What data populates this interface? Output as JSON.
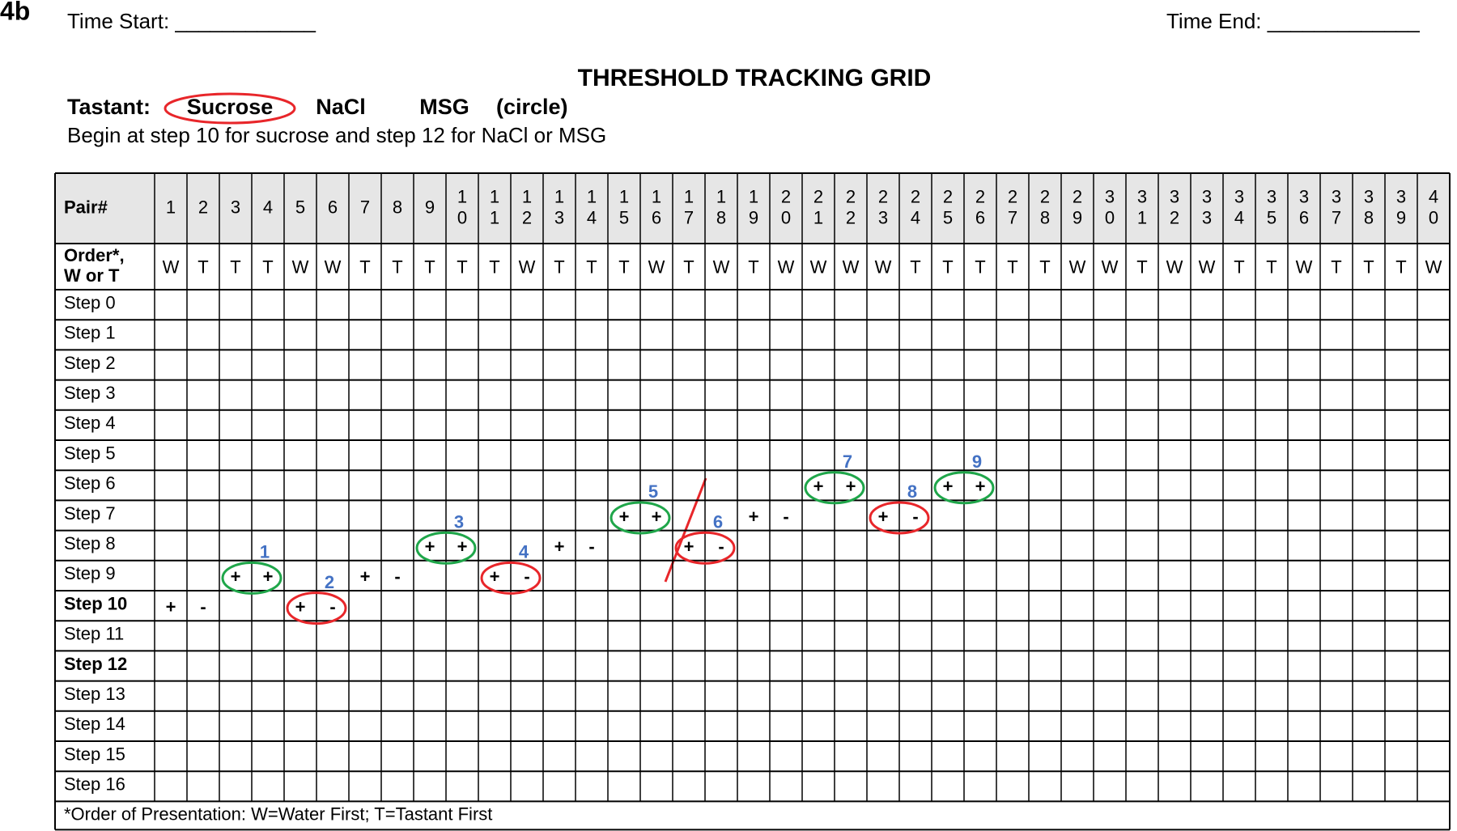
{
  "label": "4b",
  "time_start": "Time Start: ____________",
  "time_end": "Time End: _____________",
  "title": "THRESHOLD TRACKING GRID",
  "tastant": {
    "label": "Tastant:",
    "options": [
      "Sucrose",
      "NaCl",
      "MSG"
    ],
    "note": "(circle)",
    "selected": 0
  },
  "instruction": "Begin at step 10 for sucrose and step 12 for NaCl or MSG",
  "table": {
    "pair_label": "Pair#",
    "pairs": [
      "1",
      "2",
      "3",
      "4",
      "5",
      "6",
      "7",
      "8",
      "9",
      "10",
      "11",
      "12",
      "13",
      "14",
      "15",
      "16",
      "17",
      "18",
      "19",
      "20",
      "21",
      "22",
      "23",
      "24",
      "25",
      "26",
      "27",
      "28",
      "29",
      "30",
      "31",
      "32",
      "33",
      "34",
      "35",
      "36",
      "37",
      "38",
      "39",
      "40"
    ],
    "order_label": [
      "Order*,",
      "W or T"
    ],
    "orders": [
      "W",
      "T",
      "T",
      "T",
      "W",
      "W",
      "T",
      "T",
      "T",
      "T",
      "T",
      "W",
      "T",
      "T",
      "T",
      "W",
      "T",
      "W",
      "T",
      "W",
      "W",
      "W",
      "W",
      "T",
      "T",
      "T",
      "T",
      "T",
      "W",
      "W",
      "T",
      "W",
      "W",
      "T",
      "T",
      "W",
      "T",
      "T",
      "T",
      "W"
    ],
    "steps": [
      {
        "label": "Step 0"
      },
      {
        "label": "Step 1"
      },
      {
        "label": "Step 2"
      },
      {
        "label": "Step 3"
      },
      {
        "label": "Step 4"
      },
      {
        "label": "Step 5"
      },
      {
        "label": "Step 6"
      },
      {
        "label": "Step 7"
      },
      {
        "label": "Step 8"
      },
      {
        "label": "Step 9"
      },
      {
        "label": "Step 10",
        "bold": true
      },
      {
        "label": "Step 11"
      },
      {
        "label": "Step 12",
        "bold": true
      },
      {
        "label": "Step 13"
      },
      {
        "label": "Step 14"
      },
      {
        "label": "Step 15"
      },
      {
        "label": "Step 16"
      }
    ],
    "footnote": "*Order of Presentation: W=Water First; T=Tastant First",
    "responses": [
      {
        "pair": 1,
        "step": 10,
        "text": "+"
      },
      {
        "pair": 2,
        "step": 10,
        "text": "-"
      },
      {
        "pair": 3,
        "step": 9,
        "text": "+"
      },
      {
        "pair": 4,
        "step": 9,
        "text": "+"
      },
      {
        "pair": 5,
        "step": 10,
        "text": "+"
      },
      {
        "pair": 6,
        "step": 10,
        "text": "-"
      },
      {
        "pair": 7,
        "step": 9,
        "text": "+"
      },
      {
        "pair": 8,
        "step": 9,
        "text": "-"
      },
      {
        "pair": 9,
        "step": 8,
        "text": "+"
      },
      {
        "pair": 10,
        "step": 8,
        "text": "+"
      },
      {
        "pair": 11,
        "step": 9,
        "text": "+"
      },
      {
        "pair": 12,
        "step": 9,
        "text": "-"
      },
      {
        "pair": 13,
        "step": 8,
        "text": "+"
      },
      {
        "pair": 14,
        "step": 8,
        "text": "-"
      },
      {
        "pair": 15,
        "step": 7,
        "text": "+"
      },
      {
        "pair": 16,
        "step": 7,
        "text": "+"
      },
      {
        "pair": 17,
        "step": 8,
        "text": "+"
      },
      {
        "pair": 18,
        "step": 8,
        "text": "-"
      },
      {
        "pair": 19,
        "step": 7,
        "text": "+"
      },
      {
        "pair": 20,
        "step": 7,
        "text": "-"
      },
      {
        "pair": 21,
        "step": 6,
        "text": "+"
      },
      {
        "pair": 22,
        "step": 6,
        "text": "+"
      },
      {
        "pair": 23,
        "step": 7,
        "text": "+"
      },
      {
        "pair": 24,
        "step": 7,
        "text": "-"
      },
      {
        "pair": 25,
        "step": 6,
        "text": "+"
      },
      {
        "pair": 26,
        "step": 6,
        "text": "+"
      }
    ],
    "reversals": [
      {
        "label": "1",
        "pair": 3,
        "step": 9,
        "color": "#1fa64a"
      },
      {
        "label": "2",
        "pair": 5,
        "step": 10,
        "color": "#e8262a"
      },
      {
        "label": "3",
        "pair": 9,
        "step": 8,
        "color": "#1fa64a"
      },
      {
        "label": "4",
        "pair": 11,
        "step": 9,
        "color": "#e8262a"
      },
      {
        "label": "5",
        "pair": 15,
        "step": 7,
        "color": "#1fa64a"
      },
      {
        "label": "6",
        "pair": 17,
        "step": 8,
        "color": "#e8262a"
      },
      {
        "label": "7",
        "pair": 21,
        "step": 6,
        "color": "#1fa64a"
      },
      {
        "label": "8",
        "pair": 23,
        "step": 7,
        "color": "#e8262a"
      },
      {
        "label": "9",
        "pair": 25,
        "step": 6,
        "color": "#1fa64a"
      }
    ]
  }
}
